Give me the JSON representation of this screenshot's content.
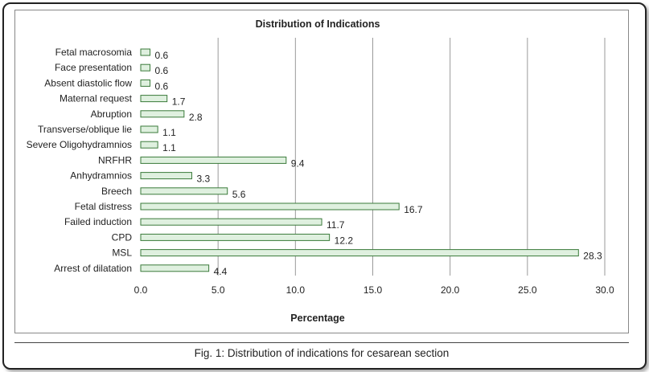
{
  "caption": "Fig. 1:  Distribution of indications for cesarean section",
  "chart_data": {
    "type": "bar",
    "orientation": "horizontal",
    "title": "Distribution of Indications",
    "xlabel": "Percentage",
    "ylabel": "",
    "xlim": [
      0,
      30
    ],
    "xticks": [
      0.0,
      5.0,
      10.0,
      15.0,
      20.0,
      25.0,
      30.0
    ],
    "xtick_labels": [
      "0.0",
      "5.0",
      "10.0",
      "15.0",
      "20.0",
      "25.0",
      "30.0"
    ],
    "grid": "vertical",
    "bar_color": "#dff0df",
    "bar_edge_color": "#3a7a3a",
    "categories": [
      "Fetal macrosomia",
      "Face presentation",
      "Absent diastolic flow",
      "Maternal request",
      "Abruption",
      "Transverse/oblique lie",
      "Severe Oligohydramnios",
      "NRFHR",
      "Anhydramnios",
      "Breech",
      "Fetal distress",
      "Failed induction",
      "CPD",
      "MSL",
      "Arrest of dilatation"
    ],
    "values": [
      0.6,
      0.6,
      0.6,
      1.7,
      2.8,
      1.1,
      1.1,
      9.4,
      3.3,
      5.6,
      16.7,
      11.7,
      12.2,
      28.3,
      4.4
    ],
    "value_labels": [
      "0.6",
      "0.6",
      "0.6",
      "1.7",
      "2.8",
      "1.1",
      "1.1",
      "9.4",
      "3.3",
      "5.6",
      "16.7",
      "11.7",
      "12.2",
      "28.3",
      "4.4"
    ]
  }
}
